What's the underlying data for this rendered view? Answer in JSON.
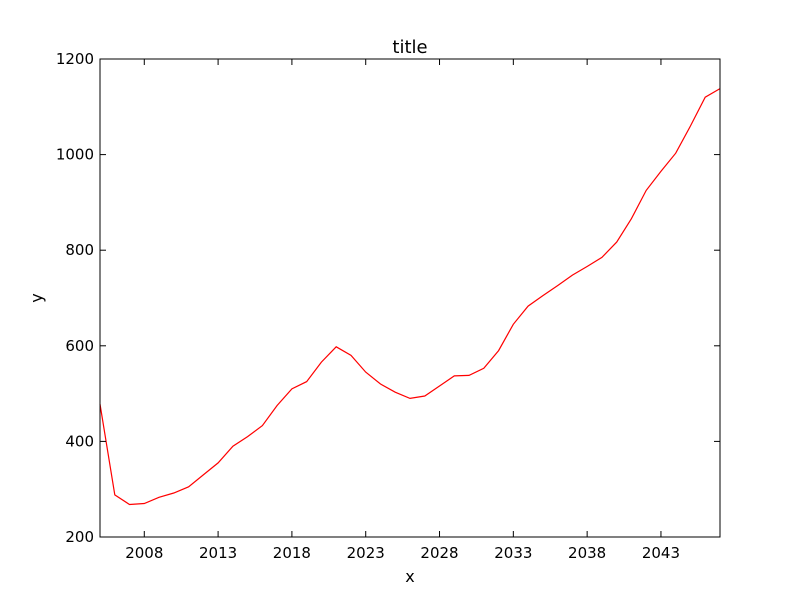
{
  "chart_data": {
    "type": "line",
    "title": "title",
    "xlabel": "x",
    "ylabel": "y",
    "xlim": [
      2005,
      2047
    ],
    "ylim": [
      200,
      1200
    ],
    "x_ticks": [
      2008,
      2013,
      2018,
      2023,
      2028,
      2033,
      2038,
      2043
    ],
    "y_ticks": [
      200,
      400,
      600,
      800,
      1000,
      1200
    ],
    "grid": false,
    "legend": "none",
    "series": [
      {
        "color": "#ff0000",
        "x": [
          2005,
          2006,
          2007,
          2008,
          2009,
          2010,
          2011,
          2012,
          2013,
          2014,
          2015,
          2016,
          2017,
          2018,
          2019,
          2020,
          2021,
          2022,
          2023,
          2024,
          2025,
          2026,
          2027,
          2028,
          2029,
          2030,
          2031,
          2032,
          2033,
          2034,
          2035,
          2036,
          2037,
          2038,
          2039,
          2040,
          2041,
          2042,
          2043,
          2044,
          2045,
          2046,
          2047
        ],
        "y": [
          478,
          288,
          268,
          270,
          283,
          292,
          305,
          330,
          355,
          390,
          410,
          433,
          475,
          510,
          525,
          566,
          598,
          580,
          545,
          520,
          503,
          490,
          495,
          516,
          537,
          538,
          553,
          590,
          645,
          683,
          705,
          726,
          748,
          766,
          785,
          817,
          866,
          925,
          965,
          1003,
          1060,
          1120,
          1138
        ]
      }
    ]
  }
}
